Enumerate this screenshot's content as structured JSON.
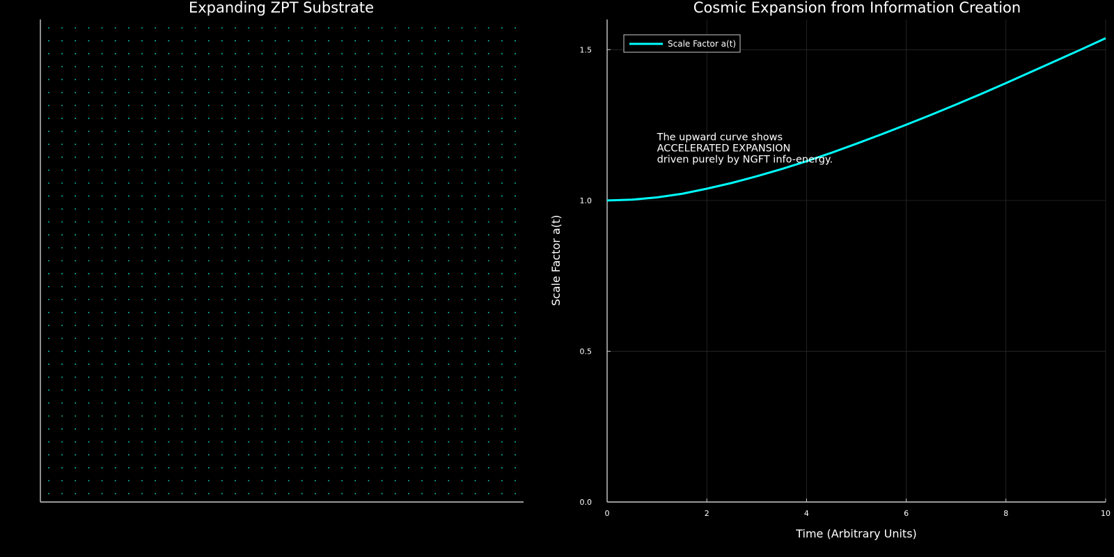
{
  "chart_data": [
    {
      "type": "scatter",
      "title": "Expanding ZPT Substrate",
      "grid_points": {
        "columns": 36,
        "rows": 37
      },
      "point_color": "#00e5c8",
      "axes_visible": false
    },
    {
      "type": "line",
      "title": "Cosmic Expansion from Information Creation",
      "xlabel": "Time (Arbitrary Units)",
      "ylabel": "Scale Factor a(t)",
      "xlim": [
        0,
        10
      ],
      "ylim": [
        0,
        1.6
      ],
      "x_ticks": [
        "0",
        "2",
        "4",
        "6",
        "8",
        "10"
      ],
      "y_ticks": [
        "0.0",
        "0.5",
        "1.0",
        "1.5"
      ],
      "grid": true,
      "legend_position": "top-left",
      "series": [
        {
          "name": "Scale Factor a(t)",
          "color": "#00ffff",
          "x": [
            0,
            0.5,
            1,
            1.5,
            2,
            2.5,
            3,
            3.5,
            4,
            4.5,
            5,
            5.5,
            6,
            6.5,
            7,
            7.5,
            8,
            8.5,
            9,
            9.5,
            10
          ],
          "y": [
            1.0,
            1.0025,
            1.01,
            1.022,
            1.039,
            1.058,
            1.08,
            1.104,
            1.13,
            1.158,
            1.188,
            1.219,
            1.251,
            1.284,
            1.318,
            1.353,
            1.389,
            1.426,
            1.463,
            1.5,
            1.538
          ]
        }
      ],
      "annotation": {
        "lines": [
          "The upward curve shows",
          "ACCELERATED EXPANSION",
          "driven purely by NGFT info-energy."
        ],
        "x": 1.0,
        "y": 1.2
      }
    }
  ]
}
